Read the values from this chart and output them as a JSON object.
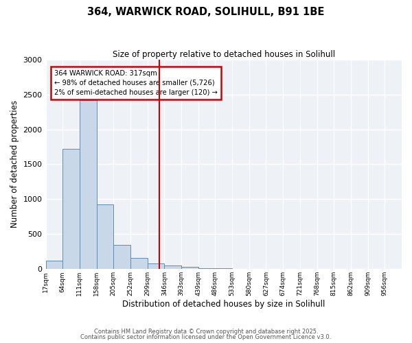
{
  "title1": "364, WARWICK ROAD, SOLIHULL, B91 1BE",
  "title2": "Size of property relative to detached houses in Solihull",
  "xlabel": "Distribution of detached houses by size in Solihull",
  "ylabel": "Number of detached properties",
  "bin_labels": [
    "17sqm",
    "64sqm",
    "111sqm",
    "158sqm",
    "205sqm",
    "252sqm",
    "299sqm",
    "346sqm",
    "393sqm",
    "439sqm",
    "486sqm",
    "533sqm",
    "580sqm",
    "627sqm",
    "674sqm",
    "721sqm",
    "768sqm",
    "815sqm",
    "862sqm",
    "909sqm",
    "956sqm"
  ],
  "bar_heights": [
    120,
    1720,
    2420,
    930,
    350,
    160,
    80,
    55,
    30,
    15,
    8,
    5,
    3,
    1,
    1,
    0,
    0,
    0,
    0,
    0,
    0
  ],
  "bar_color": "#c8d8e8",
  "bar_edge_color": "#5b8db8",
  "vline_bin": 6.7,
  "vline_color": "#cc0000",
  "annotation_text": "364 WARWICK ROAD: 317sqm\n← 98% of detached houses are smaller (5,726)\n2% of semi-detached houses are larger (120) →",
  "annotation_box_color": "#cc0000",
  "ylim": [
    0,
    3000
  ],
  "plot_bg_color": "#eef2f7",
  "footer1": "Contains HM Land Registry data © Crown copyright and database right 2025.",
  "footer2": "Contains public sector information licensed under the Open Government Licence v3.0."
}
